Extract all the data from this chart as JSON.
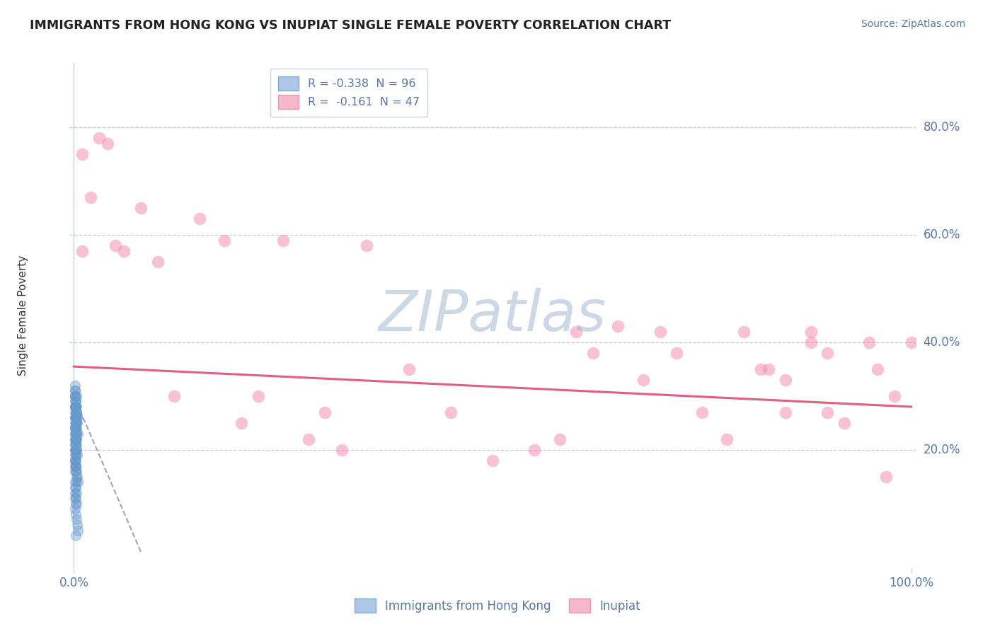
{
  "title": "IMMIGRANTS FROM HONG KONG VS INUPIAT SINGLE FEMALE POVERTY CORRELATION CHART",
  "source": "Source: ZipAtlas.com",
  "ylabel": "Single Female Poverty",
  "watermark": "ZIPatlas",
  "legend_entries": [
    {
      "label": "R = -0.338  N = 96",
      "color_face": "#aec6e8",
      "color_edge": "#7bafd4"
    },
    {
      "label": "R =  -0.161  N = 47",
      "color_face": "#f4b8c8",
      "color_edge": "#e899b0"
    }
  ],
  "blue_scatter_x": [
    0.002,
    0.003,
    0.001,
    0.004,
    0.002,
    0.003,
    0.001,
    0.005,
    0.002,
    0.003,
    0.004,
    0.001,
    0.002,
    0.003,
    0.004,
    0.005,
    0.001,
    0.002,
    0.003,
    0.004,
    0.001,
    0.002,
    0.003,
    0.001,
    0.002,
    0.003,
    0.001,
    0.002,
    0.001,
    0.002,
    0.003,
    0.001,
    0.002,
    0.003,
    0.001,
    0.002,
    0.001,
    0.002,
    0.001,
    0.001,
    0.002,
    0.001,
    0.002,
    0.001,
    0.002,
    0.003,
    0.001,
    0.002,
    0.001,
    0.002,
    0.001,
    0.002,
    0.001,
    0.001,
    0.002,
    0.001,
    0.001,
    0.002,
    0.001,
    0.002,
    0.001,
    0.001,
    0.002,
    0.001,
    0.002,
    0.003,
    0.001,
    0.002,
    0.003,
    0.004,
    0.001,
    0.002,
    0.003,
    0.002,
    0.003,
    0.001,
    0.002,
    0.001,
    0.002,
    0.001,
    0.003,
    0.001,
    0.002,
    0.001,
    0.002,
    0.003,
    0.001,
    0.002,
    0.003,
    0.004,
    0.005,
    0.002,
    0.001,
    0.003,
    0.001,
    0.002
  ],
  "blue_scatter_y": [
    0.28,
    0.3,
    0.32,
    0.26,
    0.25,
    0.27,
    0.24,
    0.23,
    0.22,
    0.2,
    0.19,
    0.18,
    0.17,
    0.16,
    0.15,
    0.14,
    0.31,
    0.29,
    0.28,
    0.26,
    0.24,
    0.23,
    0.22,
    0.28,
    0.26,
    0.24,
    0.3,
    0.28,
    0.26,
    0.25,
    0.23,
    0.29,
    0.27,
    0.25,
    0.31,
    0.29,
    0.27,
    0.25,
    0.3,
    0.28,
    0.26,
    0.24,
    0.22,
    0.23,
    0.21,
    0.2,
    0.28,
    0.26,
    0.22,
    0.2,
    0.19,
    0.17,
    0.21,
    0.25,
    0.24,
    0.23,
    0.22,
    0.2,
    0.21,
    0.19,
    0.18,
    0.2,
    0.18,
    0.17,
    0.16,
    0.14,
    0.3,
    0.28,
    0.27,
    0.25,
    0.26,
    0.24,
    0.23,
    0.22,
    0.21,
    0.2,
    0.19,
    0.18,
    0.17,
    0.16,
    0.15,
    0.14,
    0.13,
    0.12,
    0.11,
    0.1,
    0.09,
    0.08,
    0.07,
    0.06,
    0.05,
    0.1,
    0.11,
    0.12,
    0.13,
    0.04
  ],
  "pink_scatter_x": [
    0.01,
    0.01,
    0.02,
    0.03,
    0.04,
    0.05,
    0.06,
    0.08,
    0.1,
    0.12,
    0.15,
    0.18,
    0.2,
    0.22,
    0.25,
    0.28,
    0.3,
    0.32,
    0.35,
    0.4,
    0.45,
    0.5,
    0.55,
    0.58,
    0.6,
    0.62,
    0.65,
    0.68,
    0.7,
    0.72,
    0.75,
    0.78,
    0.8,
    0.82,
    0.83,
    0.85,
    0.85,
    0.88,
    0.88,
    0.9,
    0.9,
    0.92,
    0.95,
    0.96,
    0.97,
    0.98,
    1.0
  ],
  "pink_scatter_y": [
    0.75,
    0.57,
    0.67,
    0.78,
    0.77,
    0.58,
    0.57,
    0.65,
    0.55,
    0.3,
    0.63,
    0.59,
    0.25,
    0.3,
    0.59,
    0.22,
    0.27,
    0.2,
    0.58,
    0.35,
    0.27,
    0.18,
    0.2,
    0.22,
    0.42,
    0.38,
    0.43,
    0.33,
    0.42,
    0.38,
    0.27,
    0.22,
    0.42,
    0.35,
    0.35,
    0.33,
    0.27,
    0.42,
    0.4,
    0.38,
    0.27,
    0.25,
    0.4,
    0.35,
    0.15,
    0.3,
    0.4
  ],
  "blue_trendline_x": [
    0.0,
    0.08
  ],
  "blue_trendline_y": [
    0.3,
    0.01
  ],
  "pink_trendline_x": [
    0.0,
    1.0
  ],
  "pink_trendline_y": [
    0.355,
    0.28
  ],
  "xlim": [
    -0.005,
    1.005
  ],
  "ylim": [
    -0.02,
    0.92
  ],
  "ytick_positions": [
    0.2,
    0.4,
    0.6,
    0.8
  ],
  "ytick_labels": [
    "20.0%",
    "40.0%",
    "60.0%",
    "80.0%"
  ],
  "xtick_positions": [
    0.0,
    1.0
  ],
  "xtick_labels": [
    "0.0%",
    "100.0%"
  ],
  "title_color": "#222222",
  "axis_color": "#5577aa",
  "blue_color": "#6699cc",
  "pink_color": "#f48fb1",
  "blue_trendline_color": "#99aabb",
  "pink_trendline_color": "#e06080",
  "watermark_color": "#ccd8e5",
  "background_color": "#ffffff",
  "grid_color": "#c0cedc"
}
